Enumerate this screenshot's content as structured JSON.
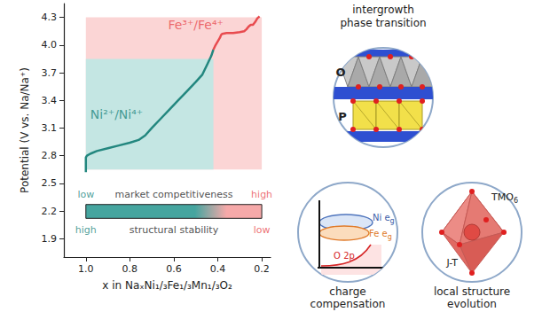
{
  "chart_data": {
    "type": "line",
    "xlabel": "x in NaₓNi₁/₃Fe₁/₃Mn₁/₃O₂",
    "ylabel": "Potential (V vs. Na/Na⁺)",
    "xlim": [
      1.1,
      0.16
    ],
    "xticks": [
      {
        "value": 1,
        "label": "1.0"
      },
      0.8,
      0.6,
      0.4,
      0.2
    ],
    "ylim": [
      1.7,
      4.45
    ],
    "yticks": [
      1.9,
      2.2,
      2.5,
      2.8,
      3.1,
      3.4,
      3.7,
      {
        "value": 4,
        "label": "4.0"
      },
      4.3
    ],
    "grid": false,
    "series": [
      {
        "color": "#23877f",
        "x": [
          1.0,
          1.0,
          0.995,
          0.98,
          0.95,
          0.9,
          0.85,
          0.8,
          0.76,
          0.73,
          0.7,
          0.66,
          0.62,
          0.58,
          0.54,
          0.5,
          0.47,
          0.45,
          0.43,
          0.42
        ],
        "values": [
          2.62,
          2.78,
          2.8,
          2.82,
          2.85,
          2.88,
          2.91,
          2.94,
          2.97,
          3.02,
          3.1,
          3.2,
          3.3,
          3.4,
          3.5,
          3.6,
          3.68,
          3.78,
          3.88,
          3.95
        ]
      },
      {
        "color": "#e84b4f",
        "x": [
          0.42,
          0.41,
          0.4,
          0.39,
          0.385,
          0.38,
          0.36,
          0.33,
          0.3,
          0.28,
          0.27,
          0.26,
          0.25,
          0.24,
          0.23,
          0.22,
          0.21
        ],
        "values": [
          3.95,
          4.0,
          4.04,
          4.08,
          4.11,
          4.12,
          4.13,
          4.13,
          4.14,
          4.15,
          4.17,
          4.2,
          4.22,
          4.22,
          4.25,
          4.29,
          4.31
        ]
      }
    ],
    "regions": [
      {
        "x": [
          1.0,
          0.2
        ],
        "y": [
          2.65,
          4.3
        ],
        "color": "#fbd5d5"
      },
      {
        "x": [
          1.0,
          0.42
        ],
        "y": [
          2.65,
          3.85
        ],
        "color": "#c4e6e3"
      }
    ],
    "colorbar": {
      "x": [
        1.0,
        0.2
      ],
      "y": [
        2.12,
        2.27
      ],
      "colors": [
        "#45a59f",
        "#f6a9a9"
      ]
    },
    "annotations": [
      {
        "text": "Ni²⁺/Ni⁴⁺",
        "x": 0.86,
        "y": 3.25,
        "color": "#23877f"
      },
      {
        "text": "Fe³⁺/Fe⁴⁺",
        "x": 0.5,
        "y": 4.22,
        "color": "#e84b4f"
      },
      {
        "text": "market competitiveness",
        "x": 0.6,
        "y": 2.38,
        "color": "#222222"
      },
      {
        "text": "low",
        "x": 1.0,
        "y": 2.38,
        "color": "#23877f"
      },
      {
        "text": "high",
        "x": 0.2,
        "y": 2.38,
        "color": "#e84b4f"
      },
      {
        "text": "structural stability",
        "x": 0.6,
        "y": 1.99,
        "color": "#222222"
      },
      {
        "text": "high",
        "x": 1.0,
        "y": 1.99,
        "color": "#23877f"
      },
      {
        "text": "low",
        "x": 0.2,
        "y": 1.99,
        "color": "#e84b4f"
      }
    ]
  },
  "diagram": {
    "intergrowth": {
      "title": [
        "intergrowth",
        "phase transition"
      ],
      "o_label": "O",
      "p_label": "P"
    },
    "charge": {
      "title": [
        "charge",
        "compensation"
      ],
      "levels": [
        {
          "main": "Ni e",
          "sub": "g"
        },
        {
          "main": "Fe e",
          "sub": "g"
        }
      ],
      "band": "O 2p"
    },
    "local": {
      "title": [
        "local structure",
        "evolution"
      ],
      "octahedron": {
        "main": "TMO",
        "sub": "6"
      },
      "distortion": "J-T"
    }
  }
}
